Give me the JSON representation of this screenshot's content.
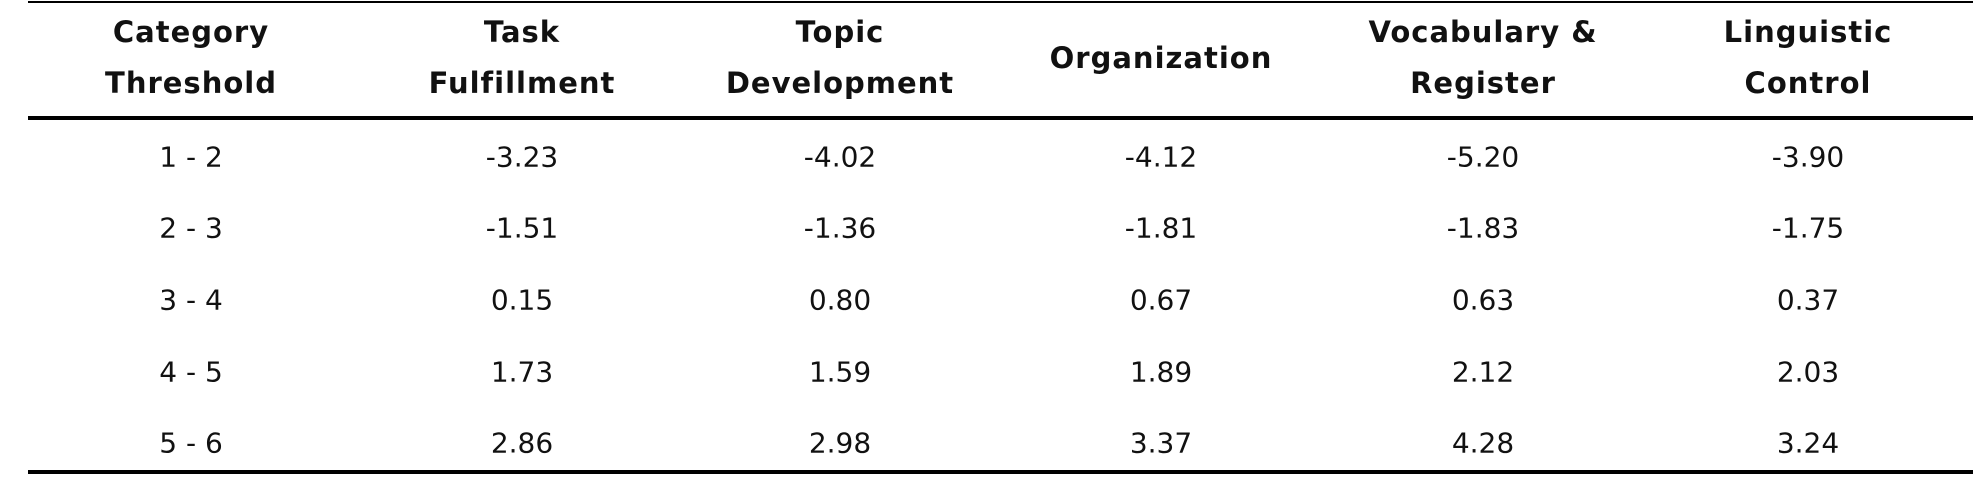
{
  "table": {
    "columns": [
      [
        "Category",
        "Threshold"
      ],
      [
        "Task",
        "Fulfillment"
      ],
      [
        "Topic",
        "Development"
      ],
      [
        "Organization"
      ],
      [
        "Vocabulary &",
        "Register"
      ],
      [
        "Linguistic",
        "Control"
      ]
    ],
    "rows": [
      [
        "1 - 2",
        "-3.23",
        "-4.02",
        "-4.12",
        "-5.20",
        "-3.90"
      ],
      [
        "2 - 3",
        "-1.51",
        "-1.36",
        "-1.81",
        "-1.83",
        "-1.75"
      ],
      [
        "3 - 4",
        "0.15",
        "0.80",
        "0.67",
        "0.63",
        "0.37"
      ],
      [
        "4 - 5",
        "1.73",
        "1.59",
        "1.89",
        "2.12",
        "2.03"
      ],
      [
        "5 - 6",
        "2.86",
        "2.98",
        "3.37",
        "4.28",
        "3.24"
      ]
    ]
  }
}
